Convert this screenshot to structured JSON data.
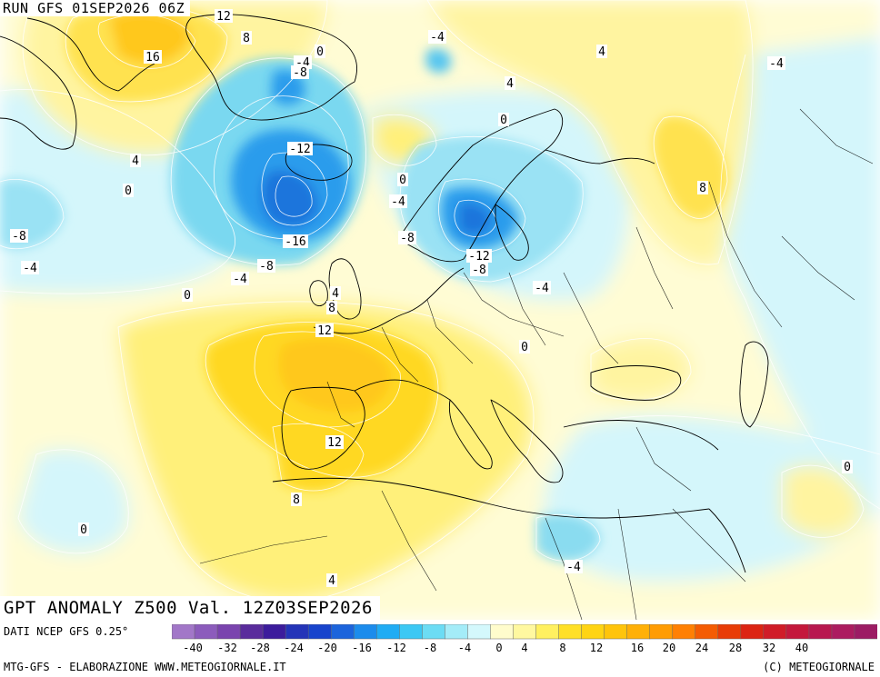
{
  "header": {
    "run": "RUN GFS 01SEP2026 06Z"
  },
  "title": "GPT ANOMALY Z500 Val. 12Z03SEP2026",
  "footer": {
    "data_source": "DATI NCEP GFS 0.25°",
    "credit_left": "MTG-GFS - ELABORAZIONE WWW.METEOGIORNALE.IT",
    "credit_right": "(C) METEOGIORNALE"
  },
  "legend": {
    "ticks": [
      "-40",
      "-32",
      "-28",
      "-24",
      "-20",
      "-16",
      "-12",
      "-8",
      "-4",
      "0",
      "4",
      "8",
      "12",
      "16",
      "20",
      "24",
      "28",
      "32",
      "40"
    ],
    "colors": [
      "#a277c8",
      "#8c5cbc",
      "#7a44ae",
      "#5a2c9c",
      "#3c1c9c",
      "#2434b8",
      "#1844cc",
      "#1c64dc",
      "#1c8cec",
      "#20acf4",
      "#3cc8f4",
      "#6cdcf4",
      "#a4ecf8",
      "#d4f8fc",
      "#fffccc",
      "#fff8a0",
      "#fff060",
      "#ffe028",
      "#ffd414",
      "#ffc40c",
      "#ffb008",
      "#ff9c04",
      "#ff8004",
      "#f45c04",
      "#e83c08",
      "#dc2414",
      "#d01c28",
      "#c4183c",
      "#b81850",
      "#ac1c60",
      "#9c1c64"
    ]
  },
  "map": {
    "region": "Europe and North Atlantic",
    "contour_labels": [
      "12",
      "8",
      "16",
      "-4",
      "0",
      "-4",
      "4",
      "-4",
      "-8",
      "4",
      "0",
      "4",
      "0",
      "-12",
      "8",
      "0",
      "-4",
      "-8",
      "-16",
      "-8",
      "-12",
      "-8",
      "-4",
      "-4",
      "-8",
      "-4",
      "0",
      "4",
      "8",
      "12",
      "0",
      "12",
      "8",
      "0",
      "0",
      "-4",
      "4"
    ]
  }
}
